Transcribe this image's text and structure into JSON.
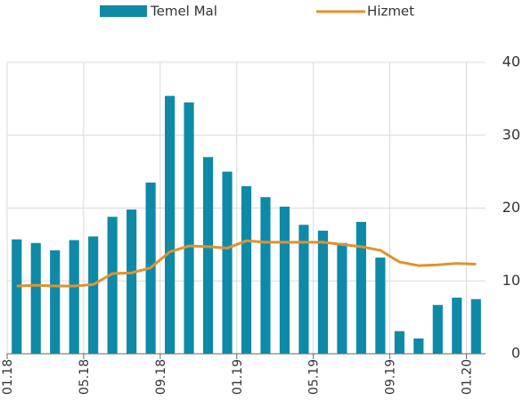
{
  "chart_data": {
    "type": "bar_line",
    "categories": [
      "01.18",
      null,
      null,
      null,
      "05.18",
      null,
      null,
      null,
      "09.18",
      null,
      null,
      null,
      "01.19",
      null,
      null,
      null,
      "05.19",
      null,
      null,
      null,
      "09.19",
      null,
      null,
      null,
      "01.20"
    ],
    "series": [
      {
        "name": "Temel Mal",
        "type": "bar",
        "color": "#0e8aa8",
        "values": [
          15.7,
          15.2,
          14.2,
          15.6,
          16.1,
          18.8,
          19.8,
          23.5,
          35.4,
          34.5,
          27,
          25,
          23,
          21.5,
          20.2,
          17.7,
          16.9,
          15.2,
          18.1,
          13.2,
          3.1,
          2.1,
          6.7,
          7.7,
          7.5
        ]
      },
      {
        "name": "Hizmet",
        "type": "line",
        "color": "#e0922e",
        "values": [
          9.3,
          9.4,
          9.3,
          9.3,
          9.5,
          11,
          11.1,
          11.8,
          14,
          14.8,
          14.7,
          14.5,
          15.5,
          15.3,
          15.3,
          15.3,
          15.3,
          15,
          14.7,
          14.2,
          12.6,
          12.1,
          12.2,
          12.4,
          12.3
        ]
      }
    ],
    "ylim": [
      0,
      40
    ],
    "yticks": [
      0,
      10,
      20,
      30,
      40
    ],
    "grid": true
  }
}
